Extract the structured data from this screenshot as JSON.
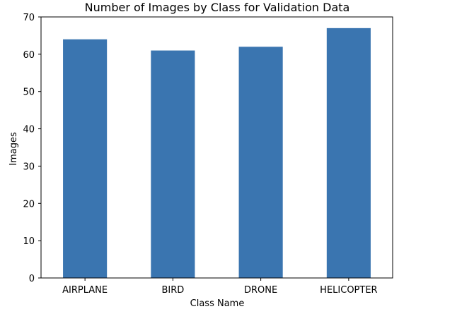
{
  "chart_data": {
    "type": "bar",
    "title": "Number of Images by Class for Validation Data",
    "xlabel": "Class Name",
    "ylabel": "Images",
    "categories": [
      "AIRPLANE",
      "BIRD",
      "DRONE",
      "HELICOPTER"
    ],
    "values": [
      64,
      61,
      62,
      67
    ],
    "ylim": [
      0,
      70
    ],
    "yticks": [
      0,
      10,
      20,
      30,
      40,
      50,
      60,
      70
    ],
    "bar_color": "#3a75b0",
    "grid": false,
    "legend": "none"
  }
}
